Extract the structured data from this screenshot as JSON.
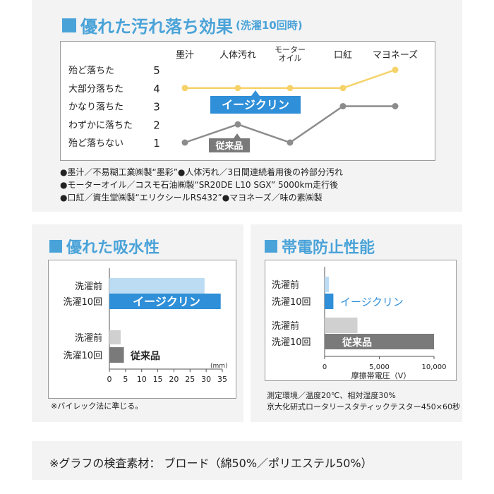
{
  "stain": {
    "heading": "優れた汚れ落ち効果",
    "heading_sub": "(洗濯10回時)",
    "notes": [
      "●墨汁／不易糊工業㈱製“墨彩”●人体汚れ／3日間連続着用後の衿部分汚れ",
      "●モーターオイル／コスモ石油㈱製“SR20DE L10 SGX” 5000km走行後",
      "●口紅／資生堂㈱製“エリクシールRS432”●マヨネーズ／味の素㈱製"
    ]
  },
  "absorb": {
    "heading": "優れた吸水性",
    "unit": "(mm)",
    "note": "※バイレック法に準じる。"
  },
  "static": {
    "heading": "帯電防止性能",
    "notes": [
      "測定環境／温度20℃、相対湿度30%",
      "京大化研式ロータリースタティックテスター450×60秒"
    ]
  },
  "footer": "※グラフの検査素材： ブロード（綿50%／ポリエステル50%）",
  "colors": {
    "accent": "#4aa3d8",
    "easy_light": "#bcdcf4",
    "easy": "#2f8fd8",
    "conv_light": "#d0d0d0",
    "conv": "#7a7a7a",
    "yellow": "#f5d36a",
    "gray_line": "#8c8c8c"
  },
  "chart_data": [
    {
      "type": "line",
      "categories": [
        "墨汁",
        "人体汚れ",
        "モーターオイル",
        "口紅",
        "マヨネーズ"
      ],
      "category_labels": [
        [
          "墨汁"
        ],
        [
          "人体汚れ"
        ],
        [
          "モーター",
          "オイル"
        ],
        [
          "口紅"
        ],
        [
          "マヨネーズ"
        ]
      ],
      "y_ticks": [
        5,
        4,
        3,
        2,
        1
      ],
      "y_tick_labels": [
        "殆ど落ちた",
        "大部分落ちた",
        "かなり落ちた",
        "わずかに落ちた",
        "殆ど落ちない"
      ],
      "ylim": [
        1,
        5
      ],
      "series": [
        {
          "name": "イージクリン",
          "values": [
            4,
            4,
            4,
            4,
            5
          ]
        },
        {
          "name": "従来品",
          "values": [
            1,
            2,
            1,
            3,
            3
          ]
        }
      ]
    },
    {
      "type": "bar",
      "orientation": "horizontal",
      "group_labels": [
        "洗濯前",
        "洗濯10回",
        "洗濯前",
        "洗濯10回"
      ],
      "series": [
        {
          "name": "イージクリン",
          "values": [
            29.5,
            34.5
          ]
        },
        {
          "name": "従来品",
          "values": [
            3.5,
            4.5
          ]
        }
      ],
      "x_ticks": [
        0,
        5,
        10,
        15,
        20,
        25,
        30,
        35
      ],
      "xlim": [
        0,
        35
      ]
    },
    {
      "type": "bar",
      "orientation": "horizontal",
      "group_labels": [
        "洗濯前",
        "洗濯10回",
        "洗濯前",
        "洗濯10回"
      ],
      "xlabel": "摩擦帯電圧（V）",
      "x_ticks": [
        0,
        5000,
        10000
      ],
      "x_tick_labels": [
        "0",
        "5,000",
        "10,000"
      ],
      "xlim": [
        0,
        10000
      ],
      "series": [
        {
          "name": "イージクリン",
          "values": [
            400,
            800
          ]
        },
        {
          "name": "従来品",
          "values": [
            3000,
            10000
          ]
        }
      ]
    }
  ]
}
